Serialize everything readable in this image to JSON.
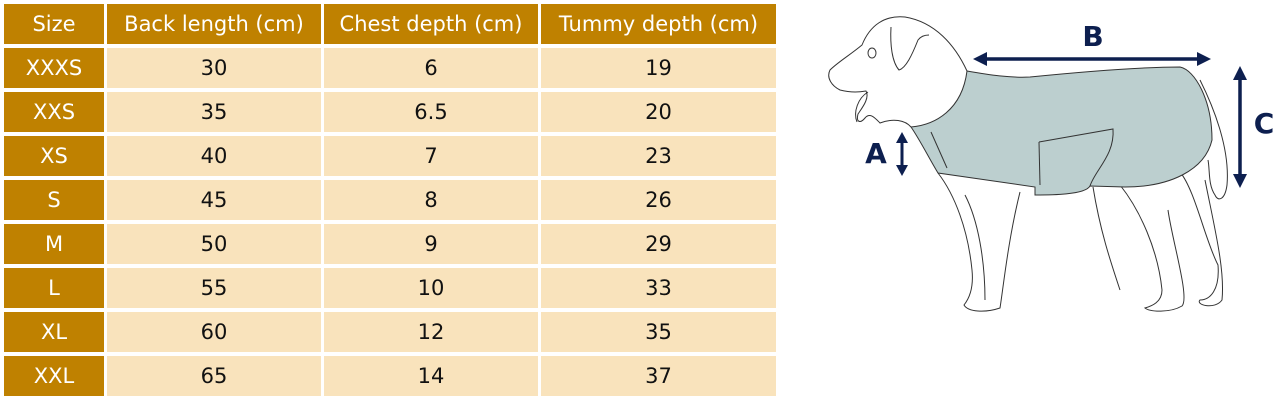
{
  "table": {
    "headers": [
      "Size",
      "Back length (cm)",
      "Chest depth (cm)",
      "Tummy depth (cm)"
    ],
    "rows": [
      [
        "XXXS",
        "30",
        "6",
        "19"
      ],
      [
        "XXS",
        "35",
        "6.5",
        "20"
      ],
      [
        "XS",
        "40",
        "7",
        "23"
      ],
      [
        "S",
        "45",
        "8",
        "26"
      ],
      [
        "M",
        "50",
        "9",
        "29"
      ],
      [
        "L",
        "55",
        "10",
        "33"
      ],
      [
        "XL",
        "60",
        "12",
        "35"
      ],
      [
        "XXL",
        "65",
        "14",
        "37"
      ]
    ]
  },
  "diagram": {
    "labels": {
      "a": "A",
      "b": "B",
      "c": "C"
    },
    "colors": {
      "header": "#bf8100",
      "cell": "#f9e3bc",
      "coat": "#bccfcf",
      "arrow": "#0d1f4f"
    }
  }
}
